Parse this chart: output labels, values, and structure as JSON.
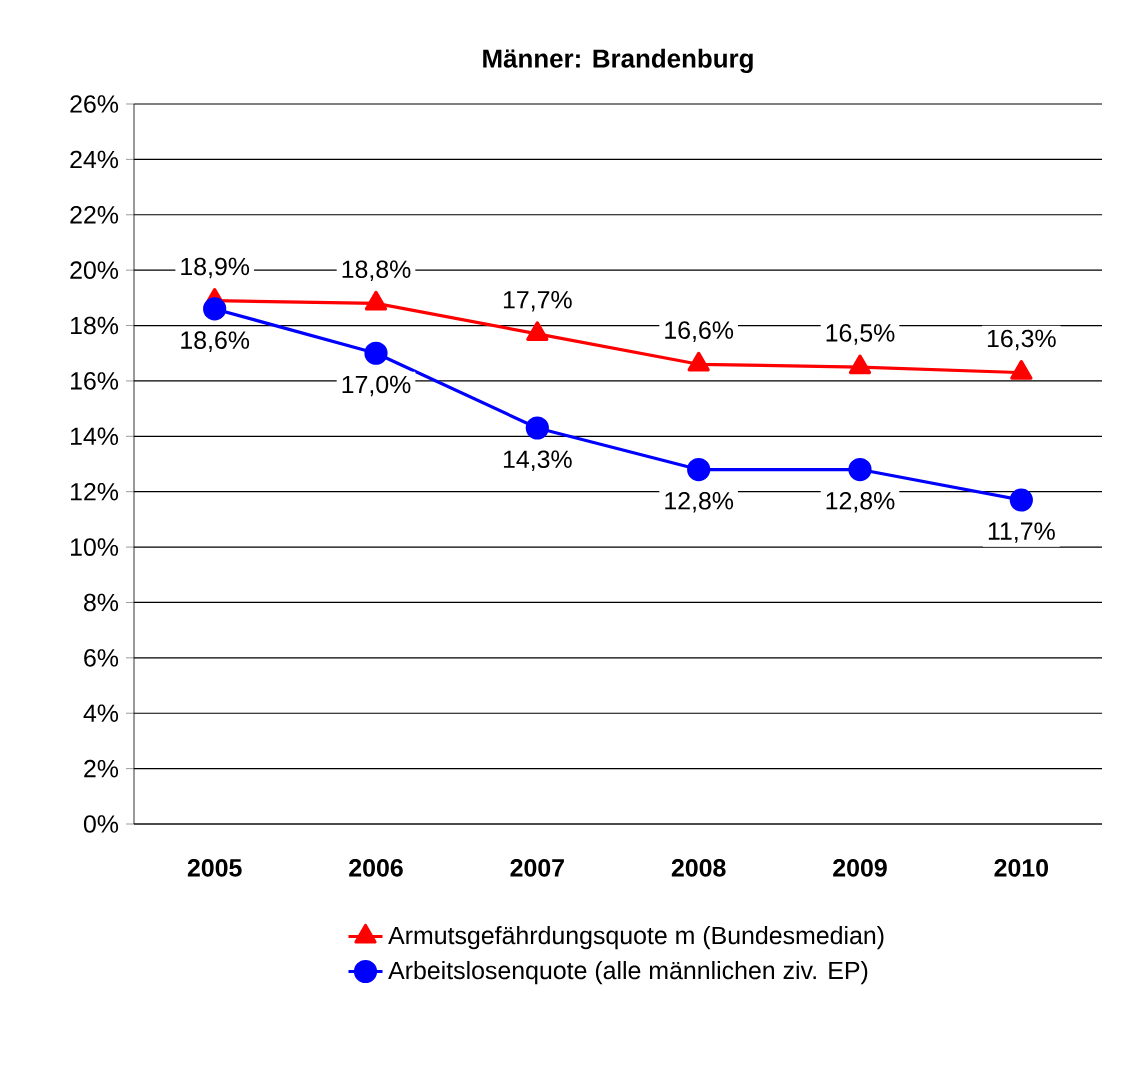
{
  "chart_data": {
    "type": "line",
    "title": "Männer: Brandenburg",
    "categories": [
      "2005",
      "2006",
      "2007",
      "2008",
      "2009",
      "2010"
    ],
    "series": [
      {
        "name": "Armutsgefährdungsquote m (Bundesmedian)",
        "color": "#ff0000",
        "marker": "triangle",
        "values": [
          18.9,
          18.8,
          17.7,
          16.6,
          16.5,
          16.3
        ],
        "value_labels": [
          "18,9%",
          "18,8%",
          "17,7%",
          "16,6%",
          "16,5%",
          "16,3%"
        ]
      },
      {
        "name": "Arbeitslosenquote (alle männlichen ziv. EP)",
        "color": "#0000ff",
        "marker": "circle",
        "values": [
          18.6,
          17.0,
          14.3,
          12.8,
          12.8,
          11.7
        ],
        "value_labels": [
          "18,6%",
          "17,0%",
          "14,3%",
          "12,8%",
          "12,8%",
          "11,7%"
        ]
      }
    ],
    "ylim": [
      0,
      26
    ],
    "yticks": [
      {
        "value": 0,
        "label": "0%"
      },
      {
        "value": 2,
        "label": "2%"
      },
      {
        "value": 4,
        "label": "4%"
      },
      {
        "value": 6,
        "label": "6%"
      },
      {
        "value": 8,
        "label": "8%"
      },
      {
        "value": 10,
        "label": "10%"
      },
      {
        "value": 12,
        "label": "12%"
      },
      {
        "value": 14,
        "label": "14%"
      },
      {
        "value": 16,
        "label": "16%"
      },
      {
        "value": 18,
        "label": "18%"
      },
      {
        "value": 20,
        "label": "20%"
      },
      {
        "value": 22,
        "label": "22%"
      },
      {
        "value": 24,
        "label": "24%"
      },
      {
        "value": 26,
        "label": "26%"
      }
    ],
    "grid": "y",
    "legend": "bottom",
    "line_style": "solid"
  }
}
